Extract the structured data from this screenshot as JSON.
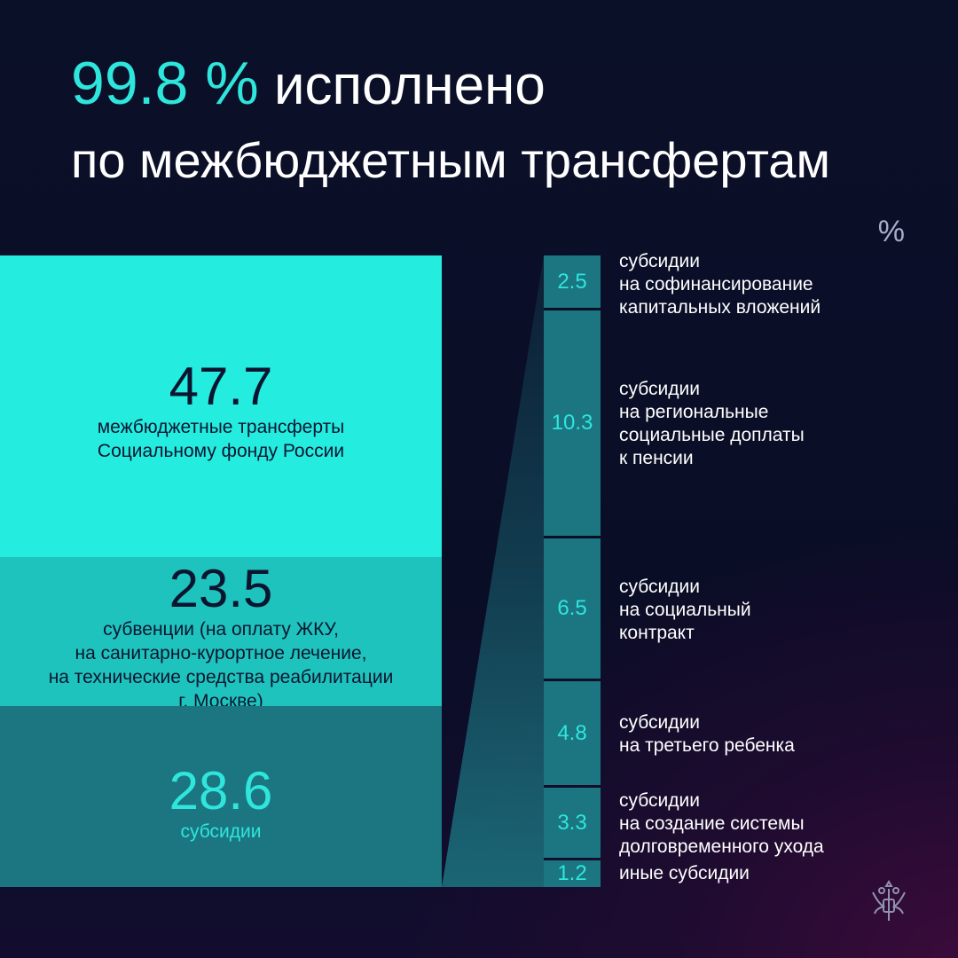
{
  "headline": {
    "percent": "99.8 %",
    "word": " исполнено",
    "line2": "по межбюджетным трансфертам"
  },
  "unit_label": "%",
  "colors": {
    "background": "#0b1029",
    "accent": "#2ee6dc",
    "block_light": "#24ede0",
    "block_mid": "#1fc3bd",
    "block_dark": "#1b7681"
  },
  "chart_data": [
    {
      "type": "bar",
      "stacked": true,
      "unit": "%",
      "categories": [
        "межбюджетные трансферты Социальному фонду России",
        "субвенции (на оплату ЖКУ, на санитарно-курортное лечение, на технические средства реабилитации г. Москве)",
        "субсидии"
      ],
      "values": [
        47.7,
        23.5,
        28.6
      ],
      "value_labels": [
        "47.7",
        "23.5",
        "28.6"
      ],
      "caption_lines": [
        [
          "межбюджетные трансферты",
          "Социальному фонду России"
        ],
        [
          "субвенции (на оплату ЖКУ,",
          "на санитарно-курортное лечение,",
          "на технические средства реабилитации",
          "г. Москве)"
        ],
        [
          "субсидии"
        ]
      ]
    },
    {
      "type": "bar",
      "stacked": true,
      "unit": "%",
      "breakdown_of": "субсидии",
      "categories": [
        "субсидии на софинансирование капитальных вложений",
        "субсидии на региональные социальные доплаты к пенсии",
        "субсидии на социальный контракт",
        "субсидии на третьего ребенка",
        "субсидии на создание системы долговременного ухода",
        "иные субсидии"
      ],
      "values": [
        2.5,
        10.3,
        6.5,
        4.8,
        3.3,
        1.2
      ],
      "value_labels": [
        "2.5",
        "10.3",
        "6.5",
        "4.8",
        "3.3",
        "1.2"
      ],
      "label_lines": [
        [
          "субсидии",
          "на софинансирование",
          "капитальных вложений"
        ],
        [
          "субсидии",
          "на региональные",
          "социальные доплаты",
          "к пенсии"
        ],
        [
          "субсидии",
          "на социальный",
          "контракт"
        ],
        [
          "субсидии",
          "на третьего ребенка"
        ],
        [
          "субсидии",
          "на создание системы",
          "долговременного ухода"
        ],
        [
          "иные субсидии"
        ]
      ]
    }
  ]
}
